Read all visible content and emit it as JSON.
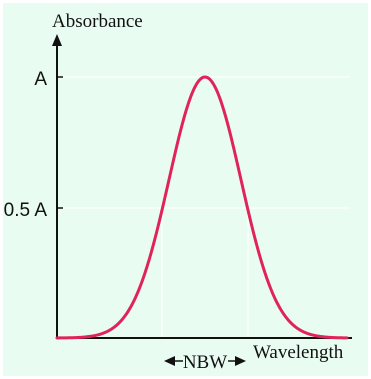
{
  "labels": {
    "y_axis": "Absorbance",
    "x_axis": "Wavelength",
    "tick_peak": "A",
    "tick_half": "0.5 A",
    "bandwidth": "NBW"
  },
  "colors": {
    "background": "#e9fcf2",
    "curve": "#e0245a",
    "axis": "#111111",
    "gridline": "#ffffff"
  },
  "icons": {
    "y_axis_arrow": "arrow-up-icon",
    "nbw_left_arrow": "arrow-left-icon",
    "nbw_right_arrow": "arrow-right-icon"
  }
}
